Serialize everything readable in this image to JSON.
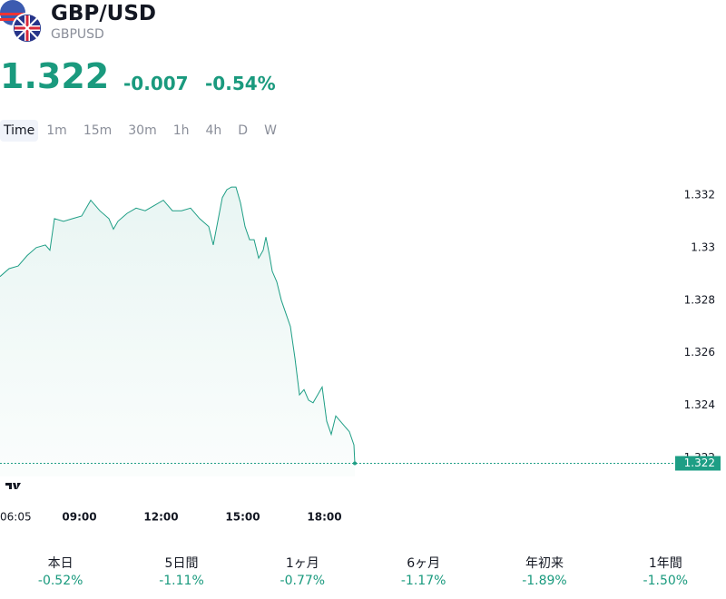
{
  "header": {
    "title": "GBP/USD",
    "symbol": "GBPUSD",
    "price": "1.322",
    "change": "-0.007",
    "change_percent": "-0.54%"
  },
  "intervals": {
    "items": [
      "Time",
      "1m",
      "15m",
      "30m",
      "1h",
      "4h",
      "D",
      "W"
    ],
    "selected": 0
  },
  "chart_data": {
    "type": "line",
    "color": "#1e9e85",
    "x": [
      365,
      385,
      405,
      425,
      445,
      465,
      475,
      485,
      505,
      525,
      545,
      565,
      585,
      605,
      615,
      625,
      645,
      665,
      685,
      705,
      725,
      745,
      765,
      785,
      805,
      825,
      835,
      845,
      855,
      865,
      875,
      885,
      895,
      905,
      915,
      925,
      935,
      945,
      951,
      959,
      965,
      975,
      985,
      995,
      1005,
      1015,
      1025,
      1035,
      1045,
      1055,
      1065,
      1075,
      1085,
      1095,
      1105,
      1115,
      1125,
      1135,
      1145,
      1147
    ],
    "values": [
      1.3289,
      1.3292,
      1.3293,
      1.3297,
      1.33,
      1.3301,
      1.3299,
      1.3311,
      1.331,
      1.3311,
      1.3312,
      1.3318,
      1.3314,
      1.3311,
      1.3307,
      1.331,
      1.3313,
      1.3315,
      1.3314,
      1.3316,
      1.3318,
      1.3314,
      1.3314,
      1.3315,
      1.3311,
      1.3308,
      1.3301,
      1.331,
      1.3319,
      1.3322,
      1.3323,
      1.3323,
      1.3317,
      1.3308,
      1.3303,
      1.3303,
      1.3296,
      1.3299,
      1.3304,
      1.3297,
      1.3291,
      1.3287,
      1.328,
      1.3275,
      1.327,
      1.3258,
      1.3244,
      1.3246,
      1.3242,
      1.3241,
      1.3244,
      1.3247,
      1.3234,
      1.3229,
      1.3236,
      1.3234,
      1.3232,
      1.323,
      1.3225,
      1.3218
    ],
    "xlim": [
      365,
      1845
    ],
    "xticks": [
      {
        "value": 365,
        "label": "06:05"
      },
      {
        "value": 540,
        "label": "09:00"
      },
      {
        "value": 720,
        "label": "12:00"
      },
      {
        "value": 900,
        "label": "15:00"
      },
      {
        "value": 1080,
        "label": "18:00"
      }
    ],
    "ylim": [
      1.3213,
      1.3332
    ],
    "yticks": [
      1.322,
      1.324,
      1.326,
      1.328,
      1.33,
      1.332
    ],
    "last_value_label": "1.322"
  },
  "performance": [
    {
      "label": "本日",
      "value": "-0.52%"
    },
    {
      "label": "5日間",
      "value": "-1.11%"
    },
    {
      "label": "1ヶ月",
      "value": "-0.77%"
    },
    {
      "label": "6ヶ月",
      "value": "-1.17%"
    },
    {
      "label": "年初来",
      "value": "-1.89%"
    },
    {
      "label": "1年間",
      "value": "-1.50%"
    }
  ]
}
